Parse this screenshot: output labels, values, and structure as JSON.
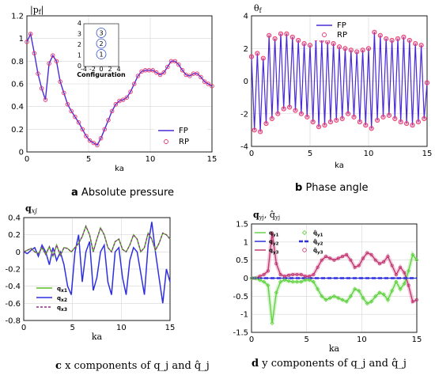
{
  "chart_data": [
    {
      "id": "a",
      "type": "line",
      "caption_letter": "a",
      "caption_text": "Absolute pressure",
      "ylabel": "|p_f|",
      "xlabel": "ka",
      "xlim": [
        0,
        15
      ],
      "ylim": [
        0,
        1.2
      ],
      "xticks": [
        "0",
        "5",
        "10",
        "15"
      ],
      "yticks": [
        "0",
        "0.2",
        "0.4",
        "0.6",
        "0.8",
        "1",
        "1.2"
      ],
      "grid": true,
      "legend": "bottom-right",
      "series": [
        {
          "name": "FP",
          "color": "#4b2ad6",
          "style": "line"
        },
        {
          "name": "RP",
          "color": "#e8336b",
          "style": "circle"
        }
      ],
      "x": [
        0,
        0.3,
        0.6,
        0.9,
        1.2,
        1.5,
        1.8,
        2.1,
        2.4,
        2.7,
        3.0,
        3.3,
        3.6,
        3.9,
        4.2,
        4.5,
        4.8,
        5.1,
        5.4,
        5.7,
        6.0,
        6.3,
        6.6,
        6.9,
        7.2,
        7.5,
        7.8,
        8.1,
        8.4,
        8.7,
        9.0,
        9.3,
        9.6,
        9.9,
        10.2,
        10.5,
        10.8,
        11.1,
        11.4,
        11.7,
        12.0,
        12.3,
        12.6,
        12.9,
        13.2,
        13.5,
        13.8,
        14.1,
        14.4,
        14.7,
        15.0
      ],
      "y": [
        0.97,
        1.04,
        0.87,
        0.69,
        0.56,
        0.46,
        0.78,
        0.85,
        0.8,
        0.62,
        0.52,
        0.42,
        0.36,
        0.31,
        0.26,
        0.2,
        0.14,
        0.1,
        0.08,
        0.06,
        0.12,
        0.2,
        0.28,
        0.36,
        0.42,
        0.45,
        0.46,
        0.48,
        0.53,
        0.6,
        0.67,
        0.71,
        0.72,
        0.72,
        0.72,
        0.7,
        0.68,
        0.7,
        0.75,
        0.8,
        0.8,
        0.77,
        0.72,
        0.68,
        0.67,
        0.69,
        0.69,
        0.66,
        0.62,
        0.6,
        0.58
      ],
      "inset": {
        "xlabel": "Configuration",
        "xticks": [
          "-4",
          "-2",
          "0",
          "2",
          "4"
        ],
        "yticks": [
          "0",
          "1",
          "2",
          "3",
          "4"
        ],
        "circles": [
          "1",
          "2",
          "3"
        ]
      }
    },
    {
      "id": "b",
      "type": "line",
      "caption_letter": "b",
      "caption_text": "Phase angle",
      "ylabel": "θ_f",
      "xlabel": "ka",
      "xlim": [
        0,
        15
      ],
      "ylim": [
        -4,
        4
      ],
      "xticks": [
        "0",
        "5",
        "10",
        "15"
      ],
      "yticks": [
        "-4",
        "-2",
        "0",
        "2",
        "4"
      ],
      "grid": true,
      "legend": "top-right",
      "series": [
        {
          "name": "FP",
          "color": "#4b2ad6",
          "style": "line"
        },
        {
          "name": "RP",
          "color": "#e8336b",
          "style": "circle"
        }
      ],
      "x": [
        0,
        0.25,
        0.5,
        0.75,
        1.0,
        1.25,
        1.5,
        1.75,
        2.0,
        2.25,
        2.5,
        2.75,
        3.0,
        3.25,
        3.5,
        3.75,
        4.0,
        4.25,
        4.5,
        4.75,
        5.0,
        5.25,
        5.5,
        5.75,
        6.0,
        6.25,
        6.5,
        6.75,
        7.0,
        7.25,
        7.5,
        7.75,
        8.0,
        8.25,
        8.5,
        8.75,
        9.0,
        9.25,
        9.5,
        9.75,
        10.0,
        10.25,
        10.5,
        10.75,
        11.0,
        11.25,
        11.5,
        11.75,
        12.0,
        12.25,
        12.5,
        12.75,
        13.0,
        13.25,
        13.5,
        13.75,
        14.0,
        14.25,
        14.5,
        14.75,
        15.0
      ],
      "y": [
        1.5,
        -3.0,
        1.7,
        -3.1,
        1.4,
        -2.6,
        2.8,
        -2.3,
        2.6,
        -2.0,
        2.9,
        -1.7,
        2.9,
        -1.6,
        2.7,
        -1.8,
        2.5,
        -2.0,
        2.3,
        -2.2,
        2.2,
        -2.5,
        2.6,
        -2.8,
        2.5,
        -2.7,
        2.4,
        -2.5,
        2.3,
        -2.4,
        2.1,
        -2.3,
        2.0,
        -2.0,
        1.9,
        -2.2,
        1.8,
        -2.5,
        1.9,
        -2.7,
        2.0,
        -2.9,
        3.0,
        -2.4,
        2.8,
        -2.2,
        2.6,
        -2.1,
        2.5,
        -2.3,
        2.6,
        -2.5,
        2.7,
        -2.6,
        2.5,
        -2.7,
        2.3,
        -2.5,
        2.2,
        -2.3,
        -0.1
      ]
    },
    {
      "id": "c",
      "type": "line",
      "caption_letter": "c",
      "caption_text": "x components of q_j and q̂_j",
      "ylabel": "q_xj",
      "xlabel": "ka",
      "xlim": [
        0,
        15
      ],
      "ylim": [
        -0.8,
        0.4
      ],
      "xticks": [
        "0",
        "5",
        "10",
        "15"
      ],
      "yticks": [
        "-0.8",
        "-0.6",
        "-0.4",
        "-0.2",
        "0",
        "0.2",
        "0.4"
      ],
      "grid": true,
      "legend": "bottom-left",
      "series": [
        {
          "name": "q_x1",
          "color": "#5bbd26",
          "style": "line",
          "y": [
            0,
            0.02,
            0.04,
            0.0,
            -0.02,
            0.05,
            -0.03,
            0.06,
            -0.05,
            0.08,
            -0.04,
            0.05,
            0.04,
            0.0,
            0.05,
            0.1,
            0.18,
            0.3,
            0.2,
            0.0,
            0.15,
            0.28,
            0.2,
            0.05,
            0.0,
            0.12,
            0.15,
            0.03,
            0.0,
            0.08,
            0.2,
            0.15,
            0.0,
            0.05,
            0.22,
            0.15,
            0.02,
            0.1,
            0.22,
            0.2,
            0.15
          ]
        },
        {
          "name": "q_x2",
          "color": "#2f2fe0",
          "style": "line",
          "y": [
            0,
            -0.02,
            0.02,
            0.05,
            -0.05,
            0.08,
            0.0,
            -0.15,
            0.05,
            -0.1,
            0.0,
            -0.15,
            -0.4,
            -0.5,
            0.0,
            0.2,
            -0.35,
            0.0,
            0.12,
            -0.45,
            -0.3,
            0.0,
            0.08,
            -0.35,
            -0.5,
            0.0,
            0.05,
            -0.3,
            -0.5,
            -0.1,
            0.05,
            0.0,
            -0.25,
            -0.5,
            0.08,
            0.35,
            0.0,
            -0.3,
            -0.6,
            -0.2,
            -0.35
          ]
        },
        {
          "name": "q_x3",
          "color": "#8e2a8a",
          "style": "dashed",
          "y": [
            0,
            0.02,
            0.04,
            0.0,
            -0.02,
            0.05,
            -0.03,
            0.06,
            -0.05,
            0.08,
            -0.04,
            0.05,
            0.04,
            0.0,
            0.05,
            0.1,
            0.18,
            0.3,
            0.2,
            0.0,
            0.15,
            0.28,
            0.2,
            0.05,
            0.0,
            0.12,
            0.15,
            0.03,
            0.0,
            0.08,
            0.2,
            0.15,
            0.0,
            0.05,
            0.22,
            0.15,
            0.02,
            0.1,
            0.22,
            0.2,
            0.15
          ]
        }
      ],
      "x": [
        0,
        0.375,
        0.75,
        1.125,
        1.5,
        1.875,
        2.25,
        2.625,
        3.0,
        3.375,
        3.75,
        4.125,
        4.5,
        4.875,
        5.25,
        5.625,
        6.0,
        6.375,
        6.75,
        7.125,
        7.5,
        7.875,
        8.25,
        8.625,
        9.0,
        9.375,
        9.75,
        10.125,
        10.5,
        10.875,
        11.25,
        11.625,
        12.0,
        12.375,
        12.75,
        13.125,
        13.5,
        13.875,
        14.25,
        14.625,
        15.0
      ]
    },
    {
      "id": "d",
      "type": "line",
      "caption_letter": "d",
      "caption_text": "y components of q_j and q̂_j",
      "ylabel": "q_yj, q̂_yj",
      "xlabel": "ka",
      "xlim": [
        0,
        15
      ],
      "ylim": [
        -1.5,
        1.5
      ],
      "xticks": [
        "0",
        "5",
        "10",
        "15"
      ],
      "yticks": [
        "-1.5",
        "-1",
        "-0.5",
        "0",
        "0.5",
        "1",
        "1.5"
      ],
      "grid": true,
      "legend": "top-left",
      "series": [
        {
          "name": "q_y1",
          "color": "#5bd03a",
          "style": "line",
          "y": [
            0,
            0,
            -0.05,
            -0.1,
            -0.2,
            -1.25,
            -0.4,
            -0.1,
            -0.05,
            -0.08,
            -0.1,
            -0.1,
            -0.1,
            -0.05,
            -0.05,
            -0.1,
            -0.3,
            -0.5,
            -0.6,
            -0.55,
            -0.5,
            -0.55,
            -0.6,
            -0.65,
            -0.5,
            -0.3,
            -0.35,
            -0.55,
            -0.7,
            -0.65,
            -0.5,
            -0.4,
            -0.45,
            -0.6,
            -0.35,
            -0.1,
            -0.3,
            -0.15,
            0.2,
            0.65,
            0.5
          ]
        },
        {
          "name": "q̂_y1",
          "color": "#5bd03a",
          "style": "diamond"
        },
        {
          "name": "q_y2",
          "color": "#2f2fe0",
          "style": "line",
          "y": [
            0,
            0,
            0,
            0,
            0,
            0,
            0,
            0,
            0,
            0,
            0,
            0,
            0,
            0,
            0,
            0,
            0,
            0,
            0,
            0,
            0,
            0,
            0,
            0,
            0,
            0,
            0,
            0,
            0,
            0,
            0,
            0,
            0,
            0,
            0,
            0,
            0,
            0,
            0,
            0,
            0
          ]
        },
        {
          "name": "q̂_y2",
          "color": "#2f2fe0",
          "style": "dashed"
        },
        {
          "name": "q_y3",
          "color": "#c0306e",
          "style": "line",
          "y": [
            0,
            0,
            0.05,
            0.1,
            0.2,
            1.25,
            0.4,
            0.1,
            0.05,
            0.08,
            0.1,
            0.1,
            0.1,
            0.05,
            0.05,
            0.1,
            0.3,
            0.5,
            0.6,
            0.55,
            0.5,
            0.55,
            0.6,
            0.65,
            0.5,
            0.3,
            0.35,
            0.55,
            0.7,
            0.65,
            0.5,
            0.4,
            0.45,
            0.6,
            0.35,
            0.1,
            0.3,
            0.15,
            -0.2,
            -0.65,
            -0.6
          ]
        },
        {
          "name": "q̂_y3",
          "color": "#c0306e",
          "style": "circle"
        }
      ],
      "x": [
        0,
        0.375,
        0.75,
        1.125,
        1.5,
        1.875,
        2.25,
        2.625,
        3.0,
        3.375,
        3.75,
        4.125,
        4.5,
        4.875,
        5.25,
        5.625,
        6.0,
        6.375,
        6.75,
        7.125,
        7.5,
        7.875,
        8.25,
        8.625,
        9.0,
        9.375,
        9.75,
        10.125,
        10.5,
        10.875,
        11.25,
        11.625,
        12.0,
        12.375,
        12.75,
        13.125,
        13.5,
        13.875,
        14.25,
        14.625,
        15.0
      ]
    }
  ]
}
